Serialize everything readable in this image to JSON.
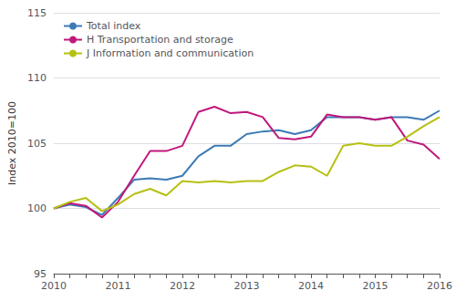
{
  "chart_data": {
    "type": "line",
    "ylabel": "Index 2010=100",
    "categories": [
      "2010",
      null,
      null,
      null,
      "2011",
      null,
      null,
      null,
      "2012",
      null,
      null,
      null,
      "2013",
      null,
      null,
      null,
      "2014",
      null,
      null,
      null,
      "2015",
      null,
      null,
      null,
      "2016"
    ],
    "series": [
      {
        "name": "Total index",
        "color": "#3c7ab5",
        "values": [
          100.0,
          100.3,
          100.1,
          99.5,
          100.8,
          102.2,
          102.3,
          102.2,
          102.5,
          104.0,
          104.8,
          104.8,
          105.7,
          105.9,
          106.0,
          105.7,
          106.0,
          107.0,
          107.0,
          107.0,
          106.8,
          107.0,
          107.0,
          106.8,
          107.5
        ]
      },
      {
        "name": "H Transportation and storage",
        "color": "#c0187c",
        "values": [
          100.0,
          100.4,
          100.2,
          99.3,
          100.5,
          102.5,
          104.4,
          104.4,
          104.8,
          107.4,
          107.8,
          107.3,
          107.4,
          107.0,
          105.4,
          105.3,
          105.5,
          107.2,
          107.0,
          107.0,
          106.8,
          107.0,
          105.2,
          104.9,
          103.8
        ]
      },
      {
        "name": "J Information and communication",
        "color": "#b5c010",
        "values": [
          100.0,
          100.5,
          100.8,
          99.8,
          100.3,
          101.1,
          101.5,
          101.0,
          102.1,
          102.0,
          102.1,
          102.0,
          102.1,
          102.1,
          102.8,
          103.3,
          103.2,
          102.5,
          104.8,
          105.0,
          104.8,
          104.8,
          105.5,
          106.3,
          107.0
        ]
      }
    ],
    "ylim": [
      95,
      115
    ],
    "yticks": [
      95,
      100,
      105,
      110,
      115
    ],
    "grid": true,
    "legend": "upper left"
  }
}
